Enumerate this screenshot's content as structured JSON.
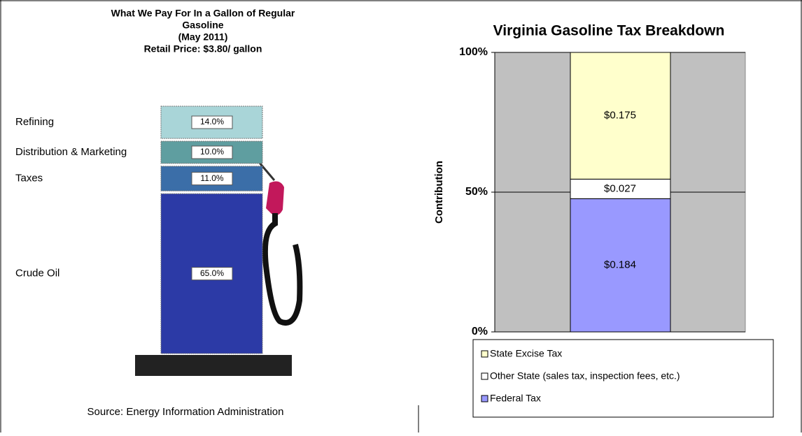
{
  "chart_data": [
    {
      "type": "pump_stack",
      "title": [
        "What We Pay For In a Gallon of Regular",
        "Gasoline",
        "(May 2011)",
        "Retail Price: $3.80/ gallon"
      ],
      "categories": [
        "Refining",
        "Distribution & Marketing",
        "Taxes",
        "Crude Oil"
      ],
      "values": [
        14,
        10,
        11,
        65
      ],
      "value_labels": [
        "14.0%",
        "10.0%",
        "11.0%",
        "65.0%"
      ],
      "colors": [
        "#a9d5d8",
        "#5f9ea0",
        "#3b6ea8",
        "#2c3aa6"
      ],
      "source": "Source:  Energy Information Administration"
    },
    {
      "type": "percent_stacked_bar",
      "title": "Virginia Gasoline Tax Breakdown",
      "ylabel": "Contribution",
      "ylim": [
        0,
        100
      ],
      "yticks": [
        {
          "value": 0,
          "label": "0%"
        },
        {
          "value": 50,
          "label": "50%"
        },
        {
          "value": 100,
          "label": "100%"
        }
      ],
      "grid": true,
      "series": [
        {
          "name": "Federal Tax",
          "color": "#9999ff",
          "values": [
            0.184
          ],
          "value_labels": [
            "$0.184"
          ]
        },
        {
          "name": "Other State (sales tax, inspection fees, etc.)",
          "color": "#ffffff",
          "values": [
            0.027
          ],
          "value_labels": [
            "$0.027"
          ]
        },
        {
          "name": "State Excise Tax",
          "color": "#ffffcc",
          "values": [
            0.175
          ],
          "value_labels": [
            "$0.175"
          ]
        }
      ]
    }
  ]
}
